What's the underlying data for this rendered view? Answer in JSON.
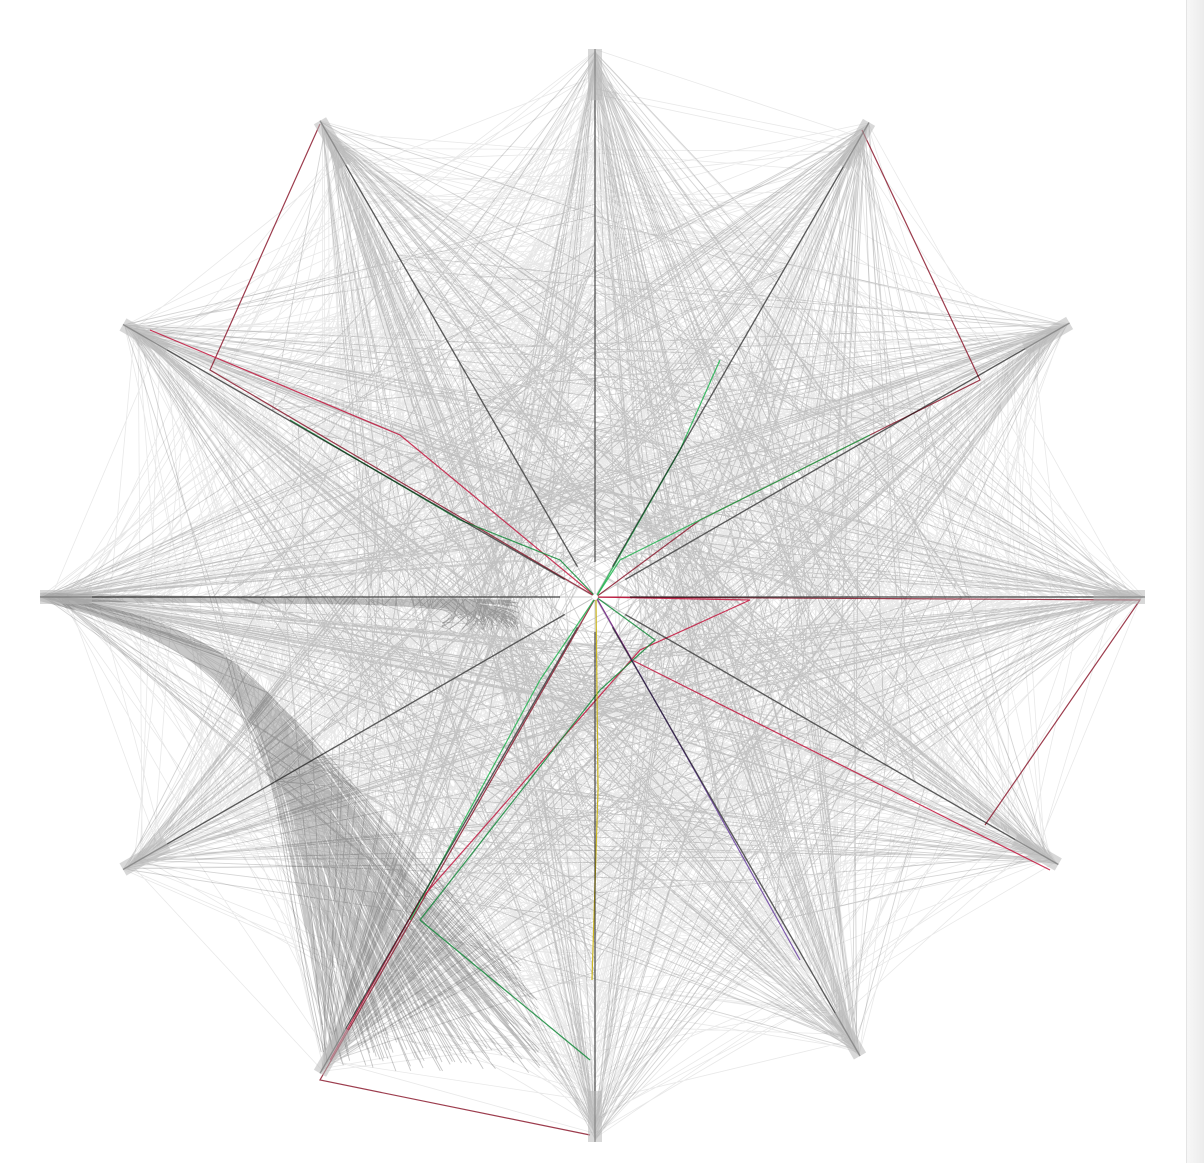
{
  "graph": {
    "type": "hive-plot",
    "axis_count": 12,
    "directed_axes": 1,
    "background": "#ffffff",
    "edge_color": "#000000",
    "axis_color": "#b8b8b8",
    "highlight_colors": [
      "#8b1a2e",
      "#c2143c",
      "#138a3a",
      "#1fb34d",
      "#6a3fa0",
      "#c9b000"
    ]
  },
  "scrollbar": {
    "orientation": "vertical"
  }
}
